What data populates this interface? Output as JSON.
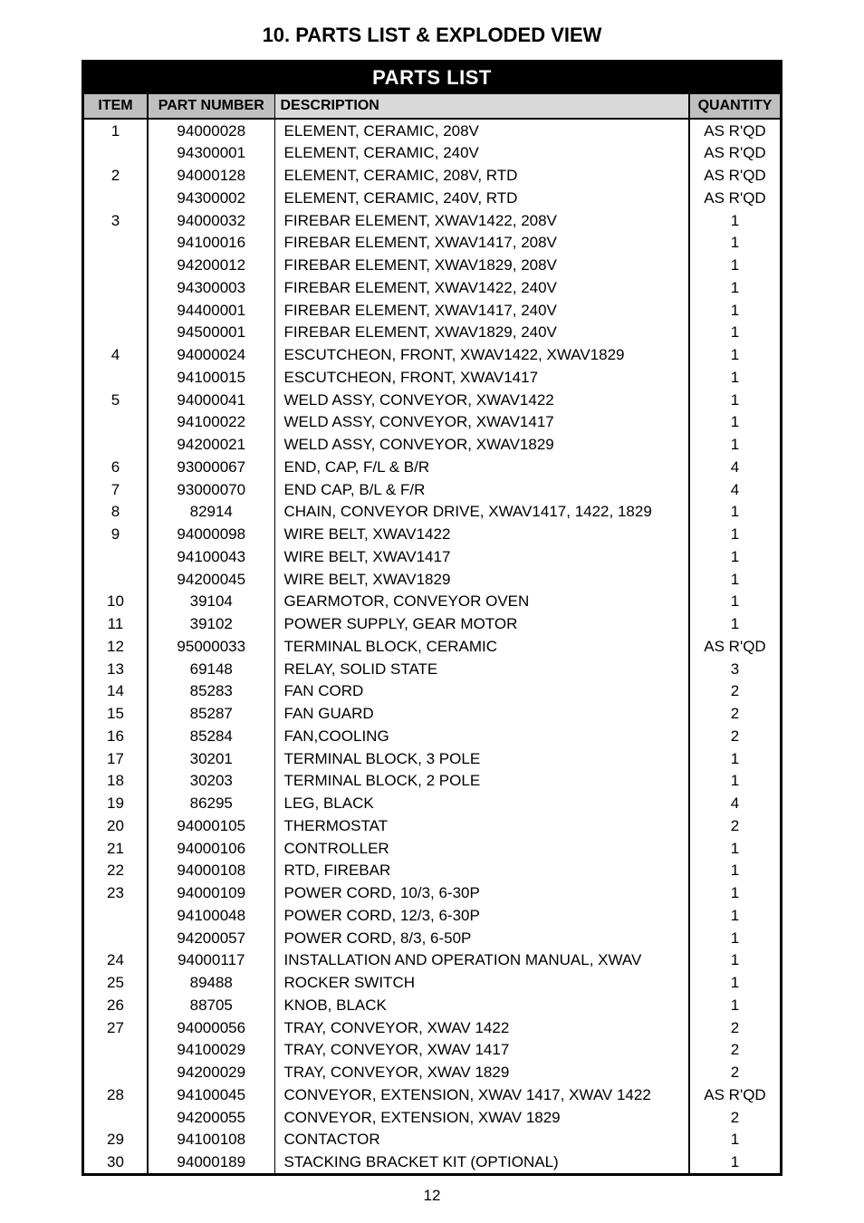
{
  "page": {
    "title": "10. PARTS LIST & EXPLODED VIEW",
    "banner": "PARTS LIST",
    "pagenum": "12",
    "headers": {
      "item": "ITEM",
      "pn": "PART NUMBER",
      "desc": "DESCRIPTION",
      "qty": "QUANTITY"
    }
  },
  "rows": [
    {
      "item": "1",
      "pn": "94000028",
      "desc": "ELEMENT, CERAMIC, 208V",
      "qty": "AS R'QD"
    },
    {
      "item": "",
      "pn": "94300001",
      "desc": "ELEMENT, CERAMIC, 240V",
      "qty": "AS R'QD"
    },
    {
      "item": "2",
      "pn": "94000128",
      "desc": "ELEMENT, CERAMIC, 208V, RTD",
      "qty": "AS R'QD"
    },
    {
      "item": "",
      "pn": "94300002",
      "desc": "ELEMENT, CERAMIC, 240V, RTD",
      "qty": "AS R'QD"
    },
    {
      "item": "3",
      "pn": "94000032",
      "desc": "FIREBAR ELEMENT, XWAV1422, 208V",
      "qty": "1"
    },
    {
      "item": "",
      "pn": "94100016",
      "desc": "FIREBAR ELEMENT, XWAV1417, 208V",
      "qty": "1"
    },
    {
      "item": "",
      "pn": "94200012",
      "desc": "FIREBAR ELEMENT, XWAV1829, 208V",
      "qty": "1"
    },
    {
      "item": "",
      "pn": "94300003",
      "desc": "FIREBAR ELEMENT, XWAV1422, 240V",
      "qty": "1"
    },
    {
      "item": "",
      "pn": "94400001",
      "desc": "FIREBAR ELEMENT, XWAV1417, 240V",
      "qty": "1"
    },
    {
      "item": "",
      "pn": "94500001",
      "desc": "FIREBAR ELEMENT, XWAV1829, 240V",
      "qty": "1"
    },
    {
      "item": "4",
      "pn": "94000024",
      "desc": "ESCUTCHEON, FRONT, XWAV1422, XWAV1829",
      "qty": "1"
    },
    {
      "item": "",
      "pn": "94100015",
      "desc": "ESCUTCHEON, FRONT, XWAV1417",
      "qty": "1"
    },
    {
      "item": "5",
      "pn": "94000041",
      "desc": "WELD ASSY, CONVEYOR, XWAV1422",
      "qty": "1"
    },
    {
      "item": "",
      "pn": "94100022",
      "desc": "WELD ASSY, CONVEYOR, XWAV1417",
      "qty": "1"
    },
    {
      "item": "",
      "pn": "94200021",
      "desc": "WELD ASSY, CONVEYOR, XWAV1829",
      "qty": "1"
    },
    {
      "item": "6",
      "pn": "93000067",
      "desc": "END, CAP, F/L & B/R",
      "qty": "4"
    },
    {
      "item": "7",
      "pn": "93000070",
      "desc": "END CAP, B/L & F/R",
      "qty": "4"
    },
    {
      "item": "8",
      "pn": "82914",
      "desc": "CHAIN, CONVEYOR DRIVE, XWAV1417, 1422, 1829",
      "qty": "1"
    },
    {
      "item": "9",
      "pn": "94000098",
      "desc": "WIRE BELT, XWAV1422",
      "qty": "1"
    },
    {
      "item": "",
      "pn": "94100043",
      "desc": "WIRE BELT, XWAV1417",
      "qty": "1"
    },
    {
      "item": "",
      "pn": "94200045",
      "desc": "WIRE BELT, XWAV1829",
      "qty": "1"
    },
    {
      "item": "10",
      "pn": "39104",
      "desc": "GEARMOTOR, CONVEYOR OVEN",
      "qty": "1"
    },
    {
      "item": "11",
      "pn": "39102",
      "desc": "POWER SUPPLY, GEAR MOTOR",
      "qty": "1"
    },
    {
      "item": "12",
      "pn": "95000033",
      "desc": "TERMINAL BLOCK, CERAMIC",
      "qty": "AS R'QD"
    },
    {
      "item": "13",
      "pn": "69148",
      "desc": "RELAY, SOLID STATE",
      "qty": "3"
    },
    {
      "item": "14",
      "pn": "85283",
      "desc": "FAN CORD",
      "qty": "2"
    },
    {
      "item": "15",
      "pn": "85287",
      "desc": "FAN GUARD",
      "qty": "2"
    },
    {
      "item": "16",
      "pn": "85284",
      "desc": "FAN,COOLING",
      "qty": "2"
    },
    {
      "item": "17",
      "pn": "30201",
      "desc": "TERMINAL BLOCK, 3 POLE",
      "qty": "1"
    },
    {
      "item": "18",
      "pn": "30203",
      "desc": "TERMINAL BLOCK, 2 POLE",
      "qty": "1"
    },
    {
      "item": "19",
      "pn": "86295",
      "desc": "LEG, BLACK",
      "qty": "4"
    },
    {
      "item": "20",
      "pn": "94000105",
      "desc": "THERMOSTAT",
      "qty": "2"
    },
    {
      "item": "21",
      "pn": "94000106",
      "desc": "CONTROLLER",
      "qty": "1"
    },
    {
      "item": "22",
      "pn": "94000108",
      "desc": "RTD, FIREBAR",
      "qty": "1"
    },
    {
      "item": "23",
      "pn": "94000109",
      "desc": "POWER CORD, 10/3, 6-30P",
      "qty": "1"
    },
    {
      "item": "",
      "pn": "94100048",
      "desc": "POWER CORD, 12/3, 6-30P",
      "qty": "1"
    },
    {
      "item": "",
      "pn": "94200057",
      "desc": "POWER CORD, 8/3, 6-50P",
      "qty": "1"
    },
    {
      "item": "24",
      "pn": "94000117",
      "desc": "INSTALLATION AND OPERATION MANUAL, XWAV",
      "qty": "1"
    },
    {
      "item": "25",
      "pn": "89488",
      "desc": "ROCKER SWITCH",
      "qty": "1"
    },
    {
      "item": "26",
      "pn": "88705",
      "desc": "KNOB, BLACK",
      "qty": "1"
    },
    {
      "item": "27",
      "pn": "94000056",
      "desc": "TRAY, CONVEYOR, XWAV 1422",
      "qty": "2"
    },
    {
      "item": "",
      "pn": "94100029",
      "desc": "TRAY, CONVEYOR, XWAV 1417",
      "qty": "2"
    },
    {
      "item": "",
      "pn": "94200029",
      "desc": "TRAY, CONVEYOR, XWAV 1829",
      "qty": "2"
    },
    {
      "item": "28",
      "pn": "94100045",
      "desc": "CONVEYOR, EXTENSION, XWAV 1417, XWAV 1422",
      "qty": "AS R'QD"
    },
    {
      "item": "",
      "pn": "94200055",
      "desc": "CONVEYOR, EXTENSION, XWAV 1829",
      "qty": "2"
    },
    {
      "item": "29",
      "pn": "94100108",
      "desc": "CONTACTOR",
      "qty": "1"
    },
    {
      "item": "30",
      "pn": "94000189",
      "desc": "STACKING BRACKET KIT (OPTIONAL)",
      "qty": "1"
    }
  ]
}
